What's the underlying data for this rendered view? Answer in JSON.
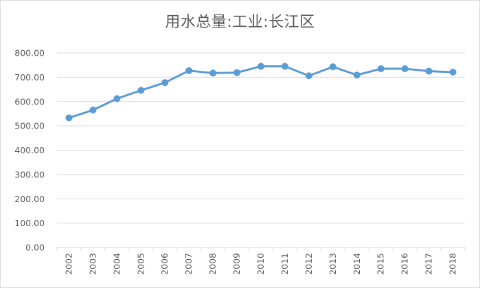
{
  "chart_data": {
    "type": "line",
    "title": "用水总量:工业:长江区",
    "xlabel": "",
    "ylabel": "",
    "ylim": [
      0,
      800
    ],
    "yticks": [
      "0.00",
      "100.00",
      "200.00",
      "300.00",
      "400.00",
      "500.00",
      "600.00",
      "700.00",
      "800.00"
    ],
    "grid": true,
    "legend": "none",
    "categories": [
      "2002",
      "2003",
      "2004",
      "2005",
      "2006",
      "2007",
      "2008",
      "2009",
      "2010",
      "2011",
      "2012",
      "2013",
      "2014",
      "2015",
      "2016",
      "2017",
      "2018"
    ],
    "series": [
      {
        "color": "#5b9bd5",
        "values": [
          533,
          565,
          612,
          646,
          678,
          727,
          717,
          719,
          745,
          745,
          706,
          743,
          709,
          735,
          735,
          725,
          721
        ]
      }
    ]
  }
}
